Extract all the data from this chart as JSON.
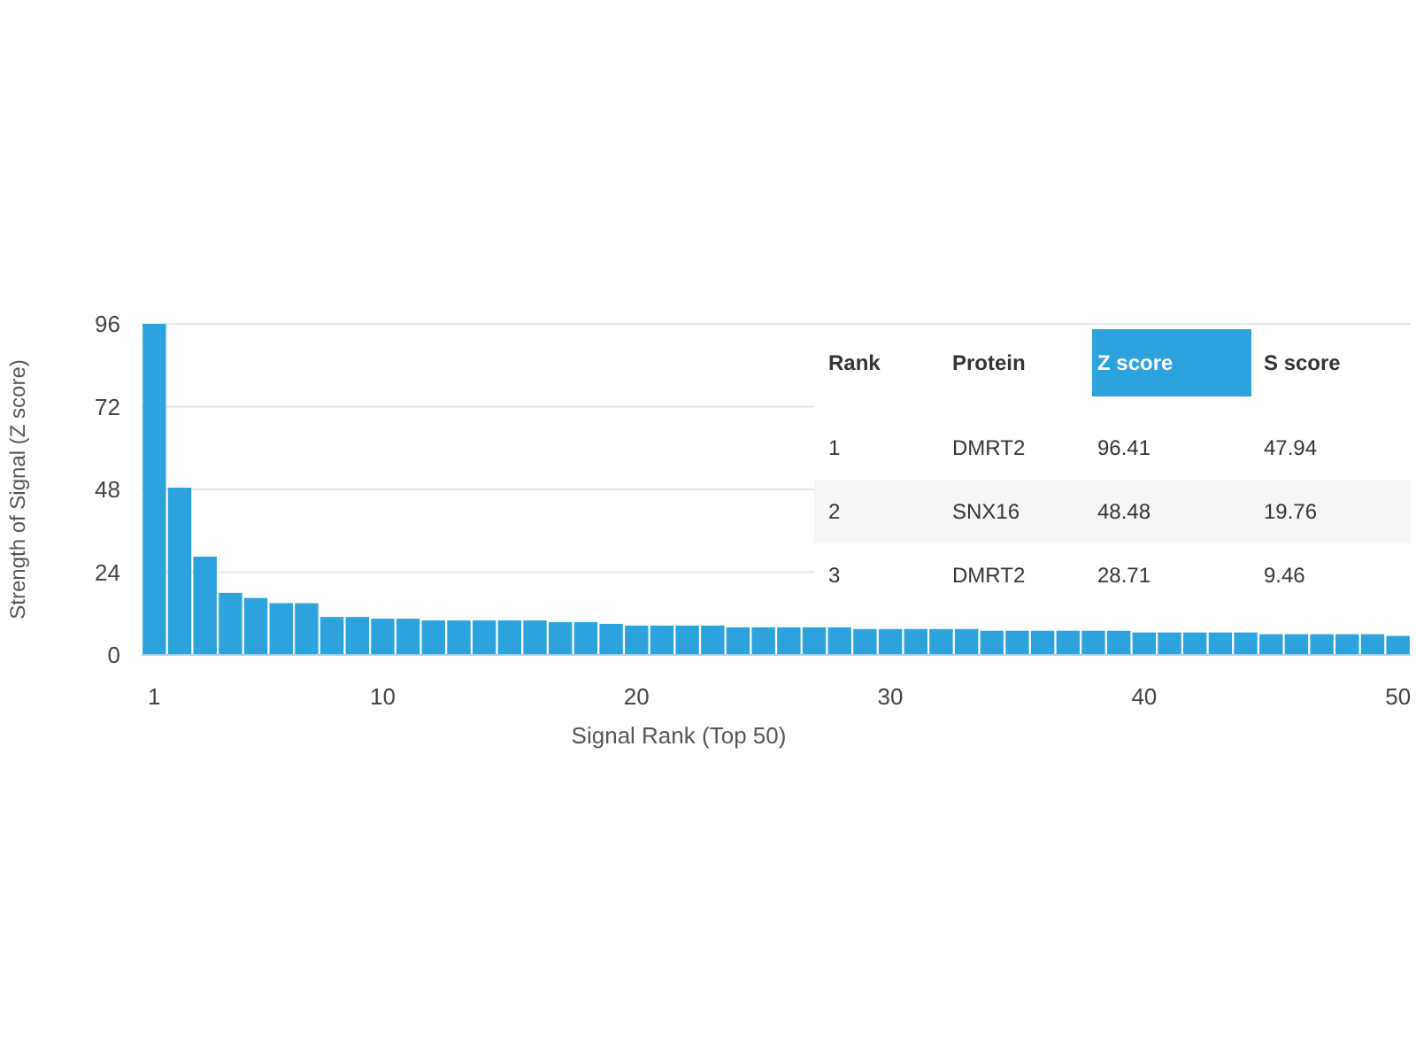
{
  "chart_data": {
    "type": "bar",
    "xlabel": "Signal Rank (Top 50)",
    "ylabel": "Strength of Signal (Z score)",
    "x": [
      1,
      2,
      3,
      4,
      5,
      6,
      7,
      8,
      9,
      10,
      11,
      12,
      13,
      14,
      15,
      16,
      17,
      18,
      19,
      20,
      21,
      22,
      23,
      24,
      25,
      26,
      27,
      28,
      29,
      30,
      31,
      32,
      33,
      34,
      35,
      36,
      37,
      38,
      39,
      40,
      41,
      42,
      43,
      44,
      45,
      46,
      47,
      48,
      49,
      50
    ],
    "values": [
      96,
      48.5,
      28.5,
      18,
      16.5,
      15,
      15,
      11,
      11,
      10.5,
      10.5,
      10,
      10,
      10,
      10,
      10,
      9.5,
      9.5,
      9,
      8.5,
      8.5,
      8.5,
      8.5,
      8,
      8,
      8,
      8,
      8,
      7.5,
      7.5,
      7.5,
      7.5,
      7.5,
      7,
      7,
      7,
      7,
      7,
      7,
      6.5,
      6.5,
      6.5,
      6.5,
      6.5,
      6,
      6,
      6,
      6,
      6,
      5.5
    ],
    "color": "#2ca3dc",
    "xlim": [
      0.5,
      50.5
    ],
    "ylim": [
      0,
      96
    ],
    "xticks": [
      1,
      10,
      20,
      30,
      40,
      50
    ],
    "yticks": [
      0,
      24,
      48,
      72,
      96
    ],
    "grid": "y",
    "annotations": [
      "Rank",
      "Protein",
      "Z score",
      "S score",
      "1",
      "DMRT2",
      "96.41",
      "47.94",
      "2",
      "SNX16",
      "48.48",
      "19.76",
      "3",
      "DMRT2",
      "28.71",
      "9.46"
    ]
  }
}
